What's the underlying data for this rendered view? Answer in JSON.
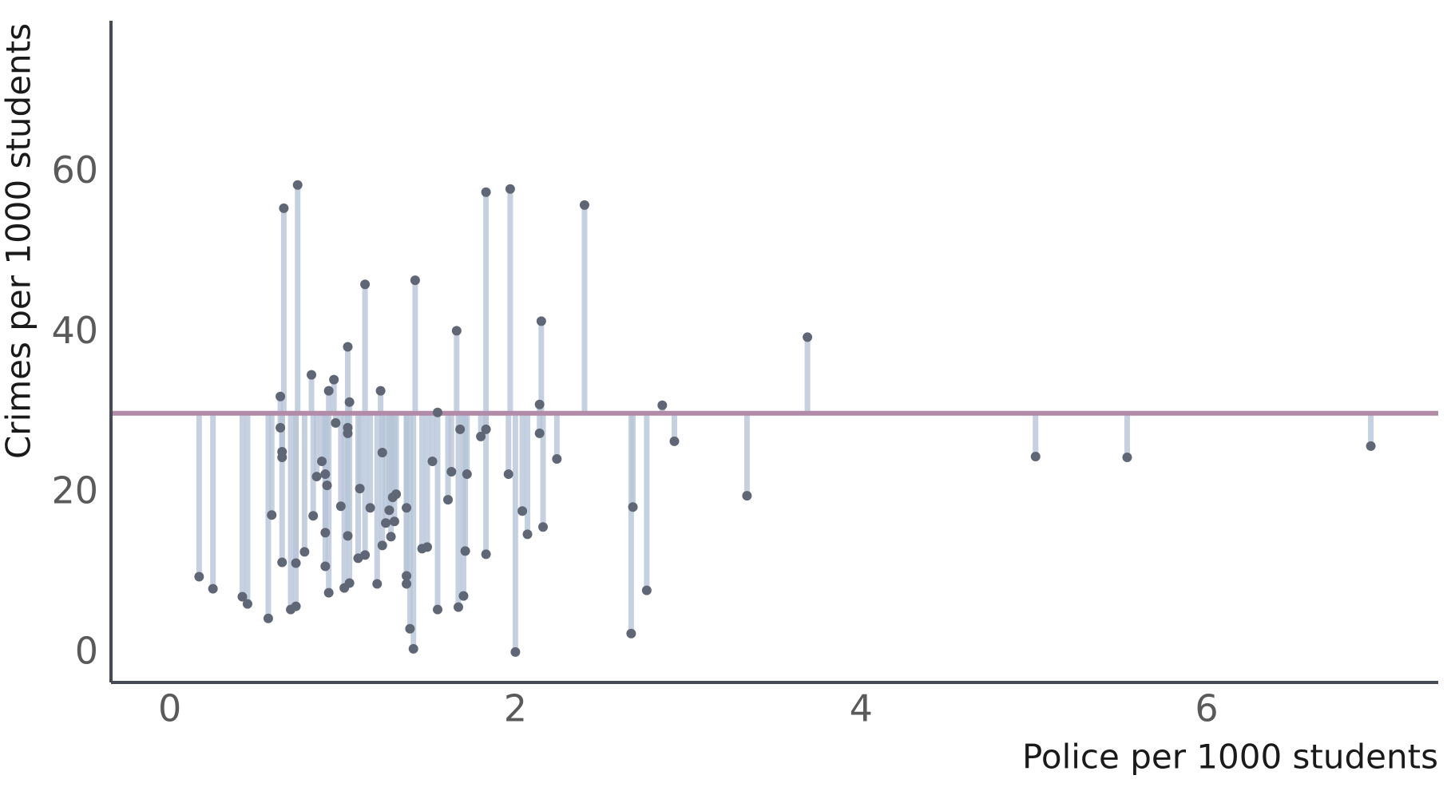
{
  "chart_data": {
    "type": "scatter",
    "x_label": "Police per 1000 students",
    "y_label": "Crimes per 1000 students",
    "xlim": [
      -0.34,
      7.34
    ],
    "ylim": [
      -3.6,
      79
    ],
    "xticks": [
      0,
      2,
      4,
      6
    ],
    "yticks": [
      0,
      20,
      40,
      60
    ],
    "grid": false,
    "reference_line": 30,
    "reference_color": "#b28ba8",
    "segment_color": "#b7c6d8",
    "color": "#5f6675",
    "x": [
      0.17,
      0.25,
      0.42,
      0.45,
      0.57,
      0.59,
      0.64,
      0.64,
      0.65,
      0.65,
      0.65,
      0.66,
      0.7,
      0.73,
      0.73,
      0.74,
      0.78,
      0.82,
      0.83,
      0.85,
      0.88,
      0.9,
      0.9,
      0.9,
      0.91,
      0.92,
      0.92,
      0.95,
      0.96,
      0.99,
      1.01,
      1.03,
      1.03,
      1.03,
      1.03,
      1.04,
      1.04,
      1.09,
      1.1,
      1.13,
      1.13,
      1.16,
      1.2,
      1.22,
      1.23,
      1.23,
      1.25,
      1.27,
      1.28,
      1.29,
      1.3,
      1.31,
      1.37,
      1.37,
      1.37,
      1.39,
      1.41,
      1.42,
      1.46,
      1.49,
      1.52,
      1.55,
      1.55,
      1.61,
      1.63,
      1.66,
      1.67,
      1.68,
      1.7,
      1.71,
      1.72,
      1.8,
      1.83,
      1.83,
      1.83,
      1.96,
      1.97,
      2.0,
      2.04,
      2.07,
      2.14,
      2.14,
      2.15,
      2.16,
      2.24,
      2.4,
      2.67,
      2.68,
      2.76,
      2.85,
      2.92,
      3.34,
      3.69,
      5.01,
      5.54,
      6.95
    ],
    "values": [
      9.6,
      8.1,
      7.1,
      6.2,
      4.4,
      17.3,
      32.1,
      28.2,
      25.2,
      24.5,
      11.4,
      55.6,
      5.5,
      5.9,
      11.3,
      58.5,
      12.7,
      34.8,
      17.2,
      22.1,
      24.0,
      15.1,
      10.9,
      22.4,
      21.0,
      32.8,
      7.6,
      34.2,
      28.8,
      18.4,
      8.2,
      38.3,
      28.2,
      27.5,
      14.7,
      31.4,
      8.8,
      11.9,
      20.6,
      12.3,
      46.1,
      18.2,
      8.7,
      32.8,
      25.1,
      13.5,
      16.3,
      17.9,
      14.6,
      19.5,
      16.5,
      19.9,
      8.7,
      9.7,
      18.2,
      3.1,
      0.6,
      46.6,
      13.1,
      13.3,
      24.0,
      30.1,
      5.5,
      19.2,
      22.7,
      40.3,
      5.8,
      28.0,
      7.2,
      12.8,
      22.4,
      27.1,
      12.4,
      57.6,
      28.0,
      22.4,
      58.0,
      0.2,
      17.8,
      14.9,
      31.1,
      27.5,
      41.5,
      15.8,
      24.3,
      56.0,
      2.5,
      18.3,
      7.9,
      31.0,
      26.5,
      19.7,
      39.5,
      24.6,
      24.5,
      25.9
    ]
  }
}
